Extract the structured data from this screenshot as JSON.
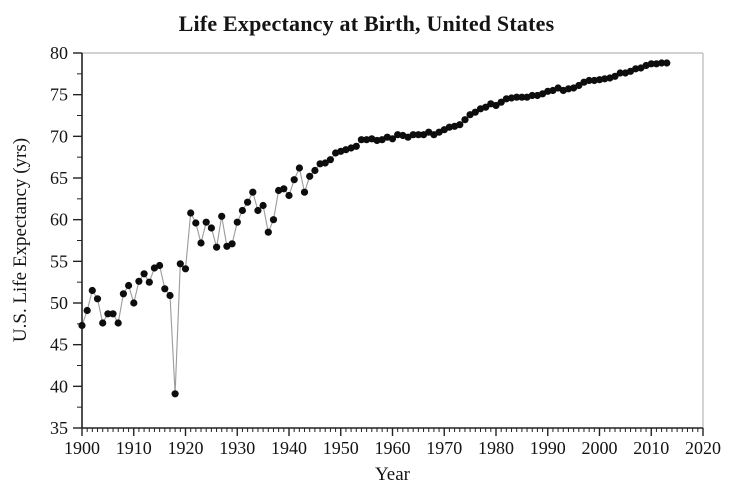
{
  "chart_data": {
    "type": "line",
    "title": "Life Expectancy at Birth, United States",
    "xlabel": "Year",
    "ylabel": "U.S. Life Expectancy (yrs)",
    "xlim": [
      1900,
      2020
    ],
    "ylim": [
      35,
      80
    ],
    "xticks": [
      1900,
      1910,
      1920,
      1930,
      1940,
      1950,
      1960,
      1970,
      1980,
      1990,
      2000,
      2010,
      2020
    ],
    "yticks": [
      35,
      40,
      45,
      50,
      55,
      60,
      65,
      70,
      75,
      80
    ],
    "x_minor_step": 1,
    "y_minor_step": 2.5,
    "grid": false,
    "legend": "none",
    "marker": "circle",
    "marker_color": "#0d0d0d",
    "line_color": "#9b9b9b",
    "axis_color": "#222222",
    "frame_color": "#b8b8b8",
    "series": [
      {
        "name": "U.S. life expectancy at birth",
        "x": [
          1900,
          1901,
          1902,
          1903,
          1904,
          1905,
          1906,
          1907,
          1908,
          1909,
          1910,
          1911,
          1912,
          1913,
          1914,
          1915,
          1916,
          1917,
          1918,
          1919,
          1920,
          1921,
          1922,
          1923,
          1924,
          1925,
          1926,
          1927,
          1928,
          1929,
          1930,
          1931,
          1932,
          1933,
          1934,
          1935,
          1936,
          1937,
          1938,
          1939,
          1940,
          1941,
          1942,
          1943,
          1944,
          1945,
          1946,
          1947,
          1948,
          1949,
          1950,
          1951,
          1952,
          1953,
          1954,
          1955,
          1956,
          1957,
          1958,
          1959,
          1960,
          1961,
          1962,
          1963,
          1964,
          1965,
          1966,
          1967,
          1968,
          1969,
          1970,
          1971,
          1972,
          1973,
          1974,
          1975,
          1976,
          1977,
          1978,
          1979,
          1980,
          1981,
          1982,
          1983,
          1984,
          1985,
          1986,
          1987,
          1988,
          1989,
          1990,
          1991,
          1992,
          1993,
          1994,
          1995,
          1996,
          1997,
          1998,
          1999,
          2000,
          2001,
          2002,
          2003,
          2004,
          2005,
          2006,
          2007,
          2008,
          2009,
          2010,
          2011,
          2012,
          2013
        ],
        "y": [
          47.3,
          49.1,
          51.5,
          50.5,
          47.6,
          48.7,
          48.7,
          47.6,
          51.1,
          52.1,
          50.0,
          52.6,
          53.5,
          52.5,
          54.2,
          54.5,
          51.7,
          50.9,
          39.1,
          54.7,
          54.1,
          60.8,
          59.6,
          57.2,
          59.7,
          59.0,
          56.7,
          60.4,
          56.8,
          57.1,
          59.7,
          61.1,
          62.1,
          63.3,
          61.1,
          61.7,
          58.5,
          60.0,
          63.5,
          63.7,
          62.9,
          64.8,
          66.2,
          63.3,
          65.2,
          65.9,
          66.7,
          66.8,
          67.2,
          68.0,
          68.2,
          68.4,
          68.6,
          68.8,
          69.6,
          69.6,
          69.7,
          69.5,
          69.6,
          69.9,
          69.7,
          70.2,
          70.1,
          69.9,
          70.2,
          70.2,
          70.2,
          70.5,
          70.2,
          70.5,
          70.8,
          71.1,
          71.2,
          71.4,
          72.0,
          72.6,
          72.9,
          73.3,
          73.5,
          73.9,
          73.7,
          74.1,
          74.5,
          74.6,
          74.7,
          74.7,
          74.7,
          74.9,
          74.9,
          75.1,
          75.4,
          75.5,
          75.8,
          75.5,
          75.7,
          75.8,
          76.1,
          76.5,
          76.7,
          76.7,
          76.8,
          76.9,
          77.0,
          77.2,
          77.6,
          77.6,
          77.8,
          78.1,
          78.2,
          78.5,
          78.7,
          78.7,
          78.8,
          78.8
        ]
      }
    ]
  }
}
